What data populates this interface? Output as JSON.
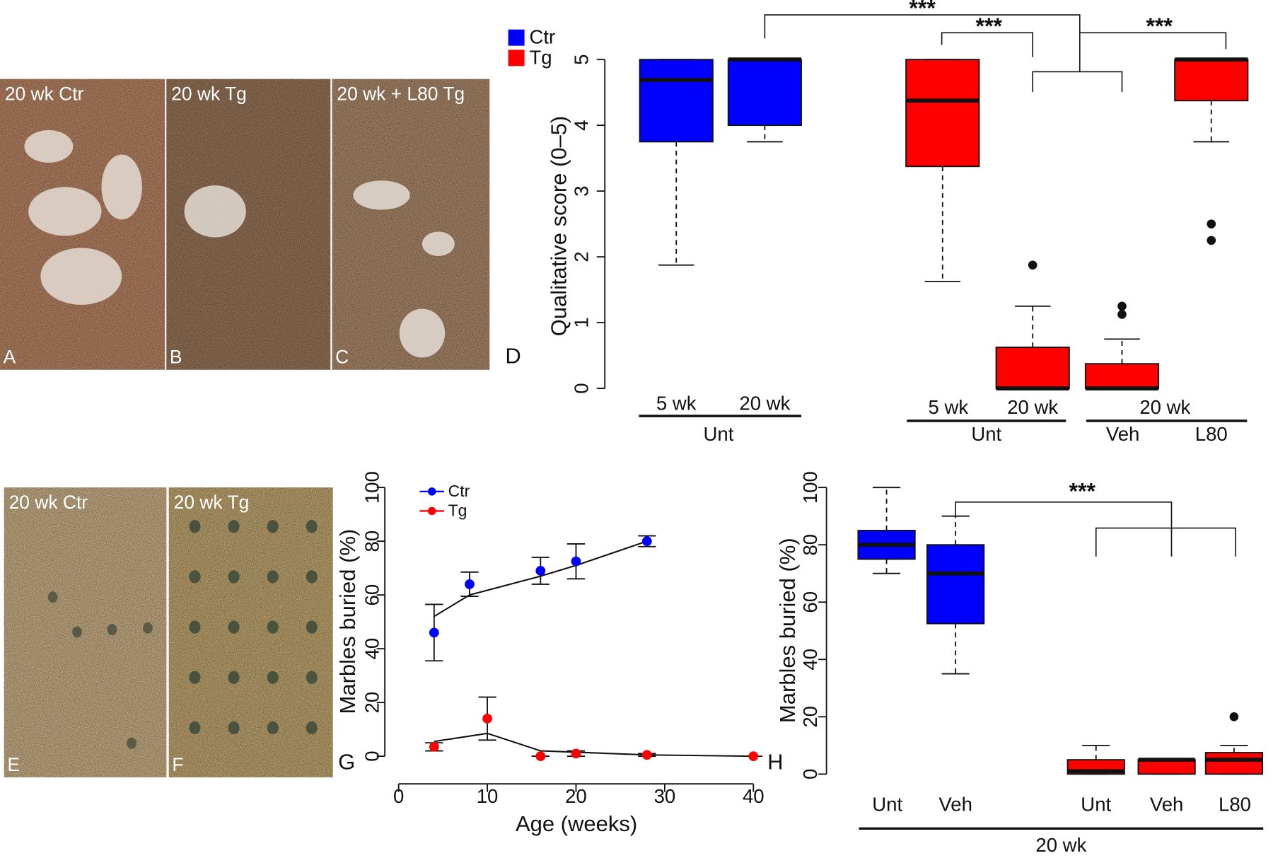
{
  "photos": [
    {
      "label": "20 wk Ctr",
      "letter": "A"
    },
    {
      "label": "20 wk Tg",
      "letter": "B"
    },
    {
      "label": "20 wk + L80 Tg",
      "letter": "C"
    },
    {
      "label": "20 wk Ctr",
      "letter": "E"
    },
    {
      "label": "20 wk Tg",
      "letter": "F"
    }
  ],
  "chart_data": [
    {
      "type": "box",
      "panel": "D",
      "ylabel": "Qualitative score (0–5)",
      "ylim": [
        0,
        5
      ],
      "yticks": [
        0,
        1,
        2,
        3,
        4,
        5
      ],
      "legend": "top-left",
      "series": [
        {
          "name": "Ctr",
          "color": "#0000ff",
          "boxes": [
            {
              "label": "5 wk",
              "min": 1.875,
              "q1": 3.75,
              "median": 4.69,
              "q3": 5,
              "max": 5
            },
            {
              "label": "20 wk",
              "min": 3.75,
              "q1": 4,
              "median": 5,
              "q3": 5,
              "max": 5
            }
          ]
        },
        {
          "name": "Tg",
          "color": "#ff0000",
          "boxes": [
            {
              "label": "5 wk",
              "min": 1.625,
              "q1": 3.375,
              "median": 4.375,
              "q3": 5,
              "max": 5
            },
            {
              "label": "20 wk",
              "min": 0,
              "q1": 0,
              "median": 0,
              "q3": 0.625,
              "max": 1.25,
              "outliers": [
                1.875
              ]
            },
            {
              "label": null,
              "min": 0,
              "q1": 0,
              "median": 0,
              "q3": 0.375,
              "max": 0.75,
              "outliers": [
                1.125,
                1.25
              ]
            },
            {
              "label": null,
              "min": 3.75,
              "q1": 4.375,
              "median": 5,
              "q3": 5,
              "max": 5,
              "outliers": [
                2.5,
                2.25
              ]
            }
          ]
        }
      ],
      "groups": [
        "Unt",
        "Unt",
        "20 wk",
        "Veh",
        "L80"
      ],
      "annotations": [
        "***",
        "***",
        "***"
      ]
    },
    {
      "type": "line",
      "panel": "G",
      "xlabel": "Age (weeks)",
      "ylabel": "Marbles buried (%)",
      "xlim": [
        0,
        40
      ],
      "xticks": [
        0,
        10,
        20,
        30,
        40
      ],
      "ylim": [
        0,
        100
      ],
      "yticks": [
        0,
        20,
        40,
        60,
        80,
        100
      ],
      "legend": "top-left",
      "series": [
        {
          "name": "Ctr",
          "color": "#0000ff",
          "x": [
            4,
            8,
            16,
            20,
            28
          ],
          "values": [
            46,
            64,
            69,
            72.5,
            80
          ],
          "errors": [
            10.5,
            4.5,
            5,
            6.5,
            2
          ],
          "fit_x": [
            4,
            8,
            16,
            20,
            28
          ],
          "fit_values": [
            52,
            60,
            67,
            71,
            80
          ]
        },
        {
          "name": "Tg",
          "color": "#ff0000",
          "x": [
            4,
            10,
            16,
            20,
            28,
            40
          ],
          "values": [
            3.5,
            14,
            0,
            1,
            0.5,
            0
          ],
          "errors": [
            1.5,
            8,
            0,
            1,
            0.5,
            0
          ],
          "fit_x": [
            4,
            10,
            16,
            20,
            28,
            40
          ],
          "fit_values": [
            5.5,
            8.5,
            2,
            1.5,
            0.5,
            0
          ]
        }
      ]
    },
    {
      "type": "box",
      "panel": "H",
      "ylabel": "Marbles buried (%)",
      "ylim": [
        0,
        100
      ],
      "yticks": [
        0,
        20,
        40,
        60,
        80,
        100
      ],
      "legend": false,
      "series": [
        {
          "color": "#0000ff",
          "boxes": [
            {
              "label": "Unt",
              "min": 70,
              "q1": 75,
              "median": 80,
              "q3": 85,
              "max": 100
            },
            {
              "label": "Veh",
              "min": 35,
              "q1": 52.5,
              "median": 70,
              "q3": 80,
              "max": 90
            }
          ]
        },
        {
          "color": "#ff0000",
          "boxes": [
            {
              "label": "Unt",
              "min": 0,
              "q1": 0,
              "median": 1,
              "q3": 5,
              "max": 10
            },
            {
              "label": "Veh",
              "min": 0,
              "q1": 0,
              "median": 5,
              "q3": 5,
              "max": 5
            },
            {
              "label": "L80",
              "min": 0,
              "q1": 0,
              "median": 5,
              "q3": 7.5,
              "max": 10,
              "outliers": [
                20
              ]
            }
          ]
        }
      ],
      "groups": [
        "20 wk"
      ],
      "annotations": [
        "***"
      ]
    }
  ]
}
